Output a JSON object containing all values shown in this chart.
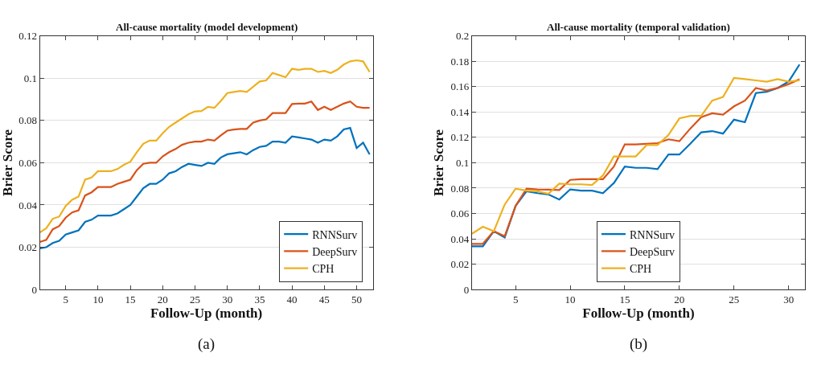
{
  "chart_data": [
    {
      "type": "line",
      "title": "All-cause mortality (model development)",
      "xlabel": "Follow-Up (month)",
      "ylabel": "Brier Score",
      "annotations": [
        "(a)"
      ],
      "x": [
        1,
        2,
        3,
        4,
        5,
        6,
        7,
        8,
        9,
        10,
        11,
        12,
        13,
        14,
        15,
        16,
        17,
        18,
        19,
        20,
        21,
        22,
        23,
        24,
        25,
        26,
        27,
        28,
        29,
        30,
        31,
        32,
        33,
        34,
        35,
        36,
        37,
        38,
        39,
        40,
        41,
        42,
        43,
        44,
        45,
        46,
        47,
        48,
        49,
        50,
        51,
        52
      ],
      "xlim": [
        1,
        52.5
      ],
      "xticks": [
        5,
        10,
        15,
        20,
        25,
        30,
        35,
        40,
        45,
        50
      ],
      "ylim": [
        0,
        0.12
      ],
      "yticks": [
        0,
        0.02,
        0.04,
        0.06,
        0.08,
        0.1,
        0.12
      ],
      "grid": "y",
      "legend": "bottom right",
      "line_style": "solid",
      "marker": "none",
      "series": [
        {
          "name": "RNNSurv",
          "color": "#0072bd",
          "values": [
            0.0195,
            0.02,
            0.022,
            0.023,
            0.026,
            0.027,
            0.028,
            0.032,
            0.033,
            0.035,
            0.035,
            0.035,
            0.036,
            0.038,
            0.04,
            0.044,
            0.048,
            0.05,
            0.05,
            0.052,
            0.055,
            0.056,
            0.058,
            0.0595,
            0.059,
            0.0585,
            0.06,
            0.0595,
            0.0625,
            0.064,
            0.0645,
            0.065,
            0.064,
            0.066,
            0.0675,
            0.068,
            0.07,
            0.07,
            0.0695,
            0.0725,
            0.072,
            0.0715,
            0.071,
            0.0695,
            0.071,
            0.0705,
            0.0725,
            0.0758,
            0.0765,
            0.067,
            0.0695,
            0.064
          ]
        },
        {
          "name": "DeepSurv",
          "color": "#d95319",
          "values": [
            0.0225,
            0.0235,
            0.0285,
            0.03,
            0.034,
            0.0365,
            0.0375,
            0.0445,
            0.046,
            0.0485,
            0.0485,
            0.0485,
            0.05,
            0.051,
            0.052,
            0.0565,
            0.0595,
            0.06,
            0.06,
            0.063,
            0.065,
            0.0665,
            0.0685,
            0.0695,
            0.07,
            0.07,
            0.071,
            0.0705,
            0.073,
            0.0752,
            0.0757,
            0.076,
            0.076,
            0.079,
            0.08,
            0.0805,
            0.0835,
            0.0835,
            0.0835,
            0.0878,
            0.088,
            0.088,
            0.089,
            0.085,
            0.0865,
            0.085,
            0.0865,
            0.088,
            0.089,
            0.0865,
            0.086,
            0.086
          ]
        },
        {
          "name": "CPH",
          "color": "#edb120",
          "values": [
            0.027,
            0.029,
            0.0335,
            0.0345,
            0.0395,
            0.0425,
            0.044,
            0.052,
            0.053,
            0.056,
            0.056,
            0.056,
            0.057,
            0.059,
            0.0605,
            0.065,
            0.069,
            0.0705,
            0.0705,
            0.074,
            0.077,
            0.079,
            0.081,
            0.083,
            0.0843,
            0.0845,
            0.0865,
            0.086,
            0.0893,
            0.093,
            0.0935,
            0.094,
            0.0935,
            0.096,
            0.0985,
            0.099,
            0.1025,
            0.1015,
            0.1005,
            0.1045,
            0.104,
            0.1045,
            0.1045,
            0.103,
            0.1035,
            0.1025,
            0.104,
            0.1065,
            0.108,
            0.1085,
            0.108,
            0.103
          ]
        }
      ]
    },
    {
      "type": "line",
      "title": "All-cause mortality (temporal validation)",
      "xlabel": "Follow-Up (month)",
      "ylabel": "Brier Score",
      "annotations": [
        "(b)"
      ],
      "x": [
        1,
        2,
        3,
        4,
        5,
        6,
        7,
        8,
        9,
        10,
        11,
        12,
        13,
        14,
        15,
        16,
        17,
        18,
        19,
        20,
        21,
        22,
        23,
        24,
        25,
        26,
        27,
        28,
        29,
        30,
        31
      ],
      "xlim": [
        1,
        31.5
      ],
      "xticks": [
        5,
        10,
        15,
        20,
        25,
        30
      ],
      "ylim": [
        0,
        0.2
      ],
      "yticks": [
        0,
        0.02,
        0.04,
        0.06,
        0.08,
        0.1,
        0.12,
        0.14,
        0.16,
        0.18,
        0.2
      ],
      "grid": "y",
      "legend": "bottom",
      "line_style": "solid",
      "marker": "none",
      "series": [
        {
          "name": "RNNSurv",
          "color": "#0072bd",
          "values": [
            0.034,
            0.034,
            0.046,
            0.041,
            0.066,
            0.0775,
            0.076,
            0.075,
            0.071,
            0.079,
            0.078,
            0.078,
            0.076,
            0.084,
            0.097,
            0.096,
            0.096,
            0.095,
            0.1065,
            0.1065,
            0.115,
            0.124,
            0.125,
            0.123,
            0.134,
            0.132,
            0.155,
            0.156,
            0.159,
            0.164,
            0.1775
          ]
        },
        {
          "name": "DeepSurv",
          "color": "#d95319",
          "values": [
            0.036,
            0.036,
            0.046,
            0.042,
            0.066,
            0.0795,
            0.079,
            0.0788,
            0.0785,
            0.0865,
            0.087,
            0.087,
            0.087,
            0.097,
            0.1145,
            0.1145,
            0.115,
            0.1155,
            0.1185,
            0.117,
            0.127,
            0.136,
            0.139,
            0.138,
            0.1445,
            0.149,
            0.159,
            0.157,
            0.159,
            0.162,
            0.166
          ]
        },
        {
          "name": "CPH",
          "color": "#edb120",
          "values": [
            0.044,
            0.0495,
            0.046,
            0.067,
            0.0795,
            0.078,
            0.0775,
            0.0755,
            0.0835,
            0.083,
            0.083,
            0.0825,
            0.09,
            0.105,
            0.105,
            0.105,
            0.114,
            0.114,
            0.122,
            0.135,
            0.137,
            0.137,
            0.149,
            0.152,
            0.167,
            0.166,
            0.165,
            0.164,
            0.166,
            0.164,
            0.165
          ]
        }
      ]
    }
  ]
}
